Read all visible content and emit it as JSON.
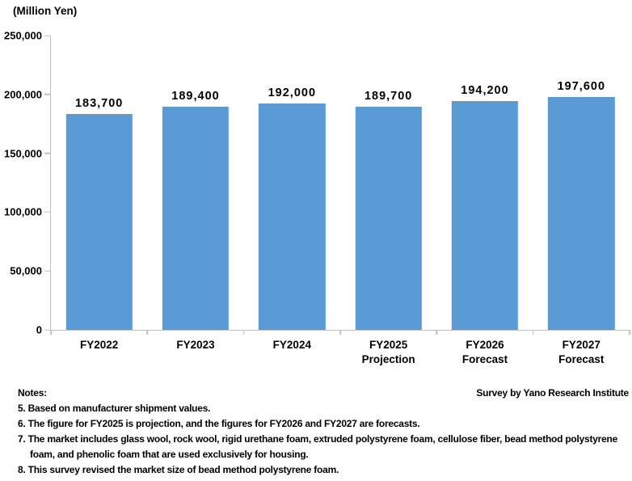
{
  "chart_data": {
    "type": "bar",
    "unit_label": "(Million Yen)",
    "categories": [
      [
        "FY2022"
      ],
      [
        "FY2023"
      ],
      [
        "FY2024"
      ],
      [
        "FY2025",
        "Projection"
      ],
      [
        "FY2026",
        "Forecast"
      ],
      [
        "FY2027",
        "Forecast"
      ]
    ],
    "values": [
      183700,
      189400,
      192000,
      189700,
      194200,
      197600
    ],
    "value_labels": [
      "183,700",
      "189,400",
      "192,000",
      "189,700",
      "194,200",
      "197,600"
    ],
    "ylim": [
      0,
      250000
    ],
    "ytick_step": 50000,
    "ytick_labels": [
      "0",
      "50,000",
      "100,000",
      "150,000",
      "200,000",
      "250,000"
    ],
    "grid": false,
    "legend_position": "none",
    "bar_color": "#5B9BD5",
    "axis_color": "#BFBFBF",
    "text_color": "#000000"
  },
  "notes": {
    "heading": "Notes:",
    "credit": "Survey by Yano Research Institute",
    "items": [
      "5. Based on manufacturer shipment values.",
      "6. The figure for FY2025 is projection, and the figures for FY2026 and FY2027 are forecasts.",
      "7. The market includes glass wool, rock wool, rigid urethane foam, extruded polystyrene foam, cellulose fiber, bead method polystyrene foam, and phenolic foam that are used exclusively for housing.",
      "8. This survey revised the market size of bead method polystyrene foam."
    ]
  }
}
